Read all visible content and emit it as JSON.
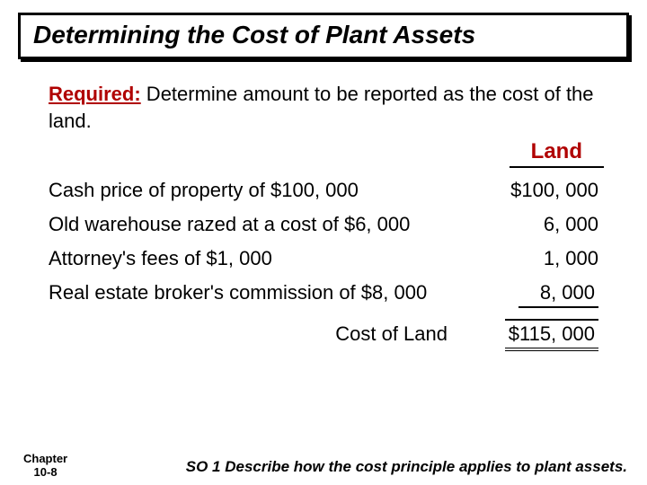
{
  "title": "Determining the Cost of Plant Assets",
  "required_label": "Required:",
  "required_text": " Determine amount to be reported as the cost of the land.",
  "column_header": "Land",
  "rows": [
    {
      "desc": "Cash price of property of $100, 000",
      "amount": "$100, 000"
    },
    {
      "desc": "Old warehouse razed at a cost of $6, 000",
      "amount": "6, 000"
    },
    {
      "desc": "Attorney's fees of $1, 000",
      "amount": "1, 000"
    },
    {
      "desc": "Real estate broker's commission of $8, 000",
      "amount": "8, 000"
    }
  ],
  "total_label": "Cost of Land",
  "total_amount": "$115, 000",
  "footer": {
    "chapter_line1": "Chapter",
    "chapter_line2": "10-8",
    "so_text": "SO 1   Describe how the cost principle applies to plant assets."
  },
  "colors": {
    "accent_red": "#b00000",
    "black": "#000000",
    "white": "#ffffff"
  }
}
